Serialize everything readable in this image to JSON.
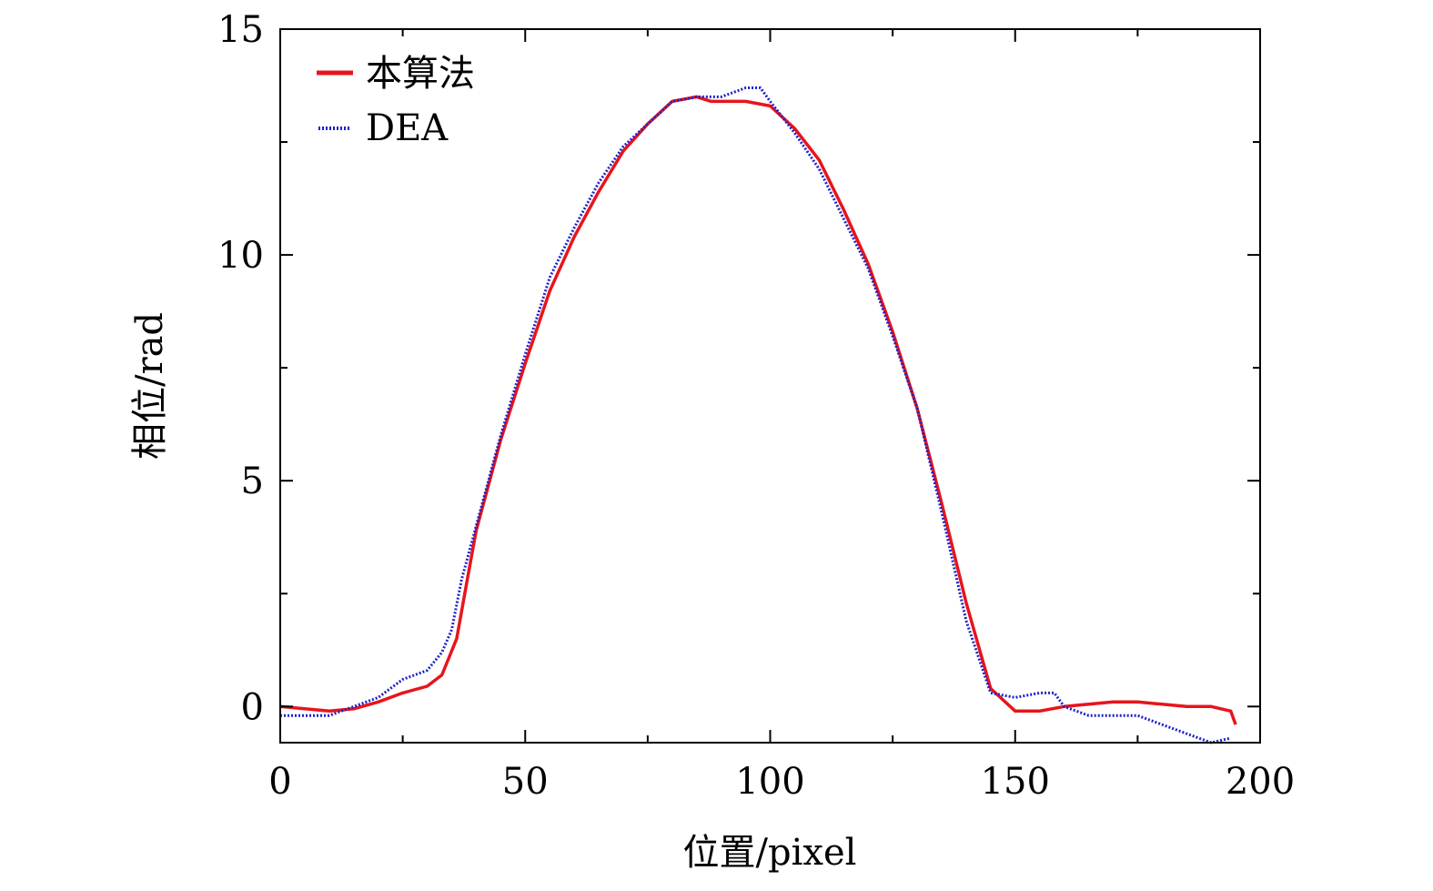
{
  "chart_data": {
    "type": "line",
    "title": "",
    "xlabel": "位置/pixel",
    "ylabel": "相位/rad",
    "xlim": [
      0,
      200
    ],
    "ylim": [
      -0.8,
      15
    ],
    "x_ticks": [
      0,
      50,
      100,
      150,
      200
    ],
    "y_ticks": [
      0,
      5,
      10,
      15
    ],
    "x_tick_labels": [
      "0",
      "50",
      "100",
      "150",
      "200"
    ],
    "y_tick_labels": [
      "0",
      "5",
      "10",
      "15"
    ],
    "grid": false,
    "legend_position": "top-left",
    "series": [
      {
        "name": "本算法",
        "color": "#e8141c",
        "style": "solid",
        "x": [
          0,
          5,
          10,
          15,
          20,
          25,
          30,
          33,
          36,
          38,
          40,
          45,
          50,
          55,
          60,
          65,
          70,
          75,
          80,
          85,
          88,
          90,
          95,
          100,
          105,
          110,
          115,
          120,
          125,
          130,
          135,
          140,
          145,
          150,
          155,
          160,
          165,
          170,
          175,
          180,
          185,
          190,
          194,
          195
        ],
        "y": [
          0.0,
          -0.05,
          -0.1,
          -0.05,
          0.1,
          0.3,
          0.45,
          0.7,
          1.5,
          2.7,
          3.9,
          5.9,
          7.6,
          9.2,
          10.4,
          11.4,
          12.3,
          12.9,
          13.4,
          13.5,
          13.4,
          13.4,
          13.4,
          13.3,
          12.8,
          12.1,
          11.0,
          9.8,
          8.3,
          6.6,
          4.5,
          2.3,
          0.4,
          -0.1,
          -0.1,
          0.0,
          0.05,
          0.1,
          0.1,
          0.05,
          0.0,
          0.0,
          -0.1,
          -0.4
        ]
      },
      {
        "name": "DEA",
        "color": "#1c22c8",
        "style": "dotted",
        "x": [
          0,
          5,
          10,
          15,
          20,
          25,
          30,
          33,
          35,
          37,
          40,
          45,
          50,
          55,
          60,
          65,
          70,
          75,
          80,
          85,
          90,
          95,
          98,
          100,
          105,
          110,
          115,
          120,
          125,
          130,
          135,
          140,
          145,
          150,
          155,
          158,
          160,
          165,
          170,
          175,
          180,
          185,
          190,
          194
        ],
        "y": [
          -0.2,
          -0.2,
          -0.2,
          0.0,
          0.2,
          0.6,
          0.8,
          1.2,
          1.7,
          2.8,
          4.0,
          6.0,
          7.8,
          9.5,
          10.6,
          11.6,
          12.4,
          12.9,
          13.4,
          13.5,
          13.5,
          13.7,
          13.7,
          13.4,
          12.7,
          11.9,
          10.8,
          9.7,
          8.2,
          6.6,
          4.3,
          1.9,
          0.3,
          0.2,
          0.3,
          0.3,
          0.0,
          -0.2,
          -0.2,
          -0.2,
          -0.4,
          -0.6,
          -0.8,
          -0.7
        ]
      }
    ]
  }
}
